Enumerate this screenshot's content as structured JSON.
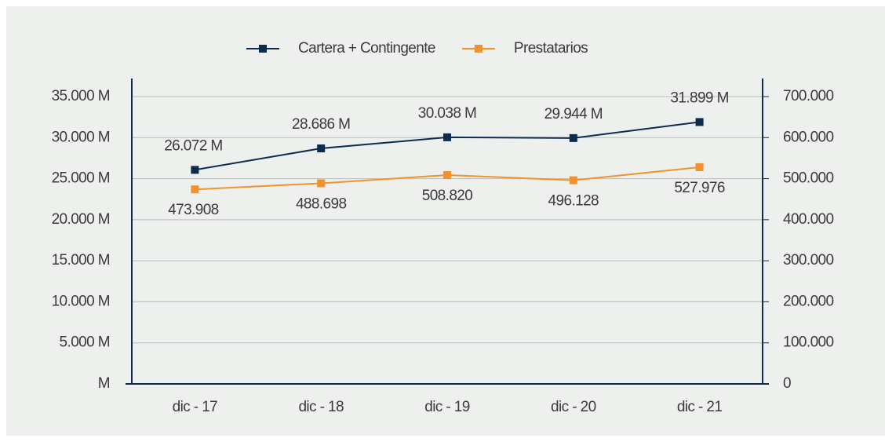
{
  "chart_data": {
    "type": "line",
    "categories": [
      "dic - 17",
      "dic - 18",
      "dic - 19",
      "dic - 20",
      "dic - 21"
    ],
    "series": [
      {
        "name": "Cartera + Contingente",
        "color": "#0d2a4f",
        "values": [
          26072,
          28686,
          30038,
          29944,
          31899
        ],
        "value_labels": [
          "26.072 M",
          "28.686 M",
          "30.038 M",
          "29.944 M",
          "31.899 M"
        ]
      },
      {
        "name": "Prestatarios",
        "color": "#f0922e",
        "axis": "y2",
        "values": [
          473908,
          488698,
          508820,
          496128,
          527976
        ],
        "value_labels": [
          "473.908",
          "488.698",
          "508.820",
          "496.128",
          "527.976"
        ]
      }
    ],
    "ylim": [
      0,
      35000
    ],
    "yticks": [
      {
        "value": 0,
        "label": "M"
      },
      {
        "value": 5000,
        "label": "5.000 M"
      },
      {
        "value": 10000,
        "label": "10.000 M"
      },
      {
        "value": 15000,
        "label": "15.000 M"
      },
      {
        "value": 20000,
        "label": "20.000 M"
      },
      {
        "value": 25000,
        "label": "25.000 M"
      },
      {
        "value": 30000,
        "label": "30.000 M"
      },
      {
        "value": 35000,
        "label": "35.000 M"
      }
    ],
    "y2lim": [
      0,
      700000
    ],
    "y2ticks": [
      0,
      {
        "value": 100000,
        "label": "100.000"
      },
      {
        "value": 200000,
        "label": "200.000"
      },
      {
        "value": 300000,
        "label": "300.000"
      },
      {
        "value": 400000,
        "label": "400.000"
      },
      {
        "value": 500000,
        "label": "500.000"
      },
      {
        "value": 600000,
        "label": "600.000"
      },
      {
        "value": 700000,
        "label": "700.000"
      }
    ],
    "grid": true,
    "legend": "top"
  }
}
